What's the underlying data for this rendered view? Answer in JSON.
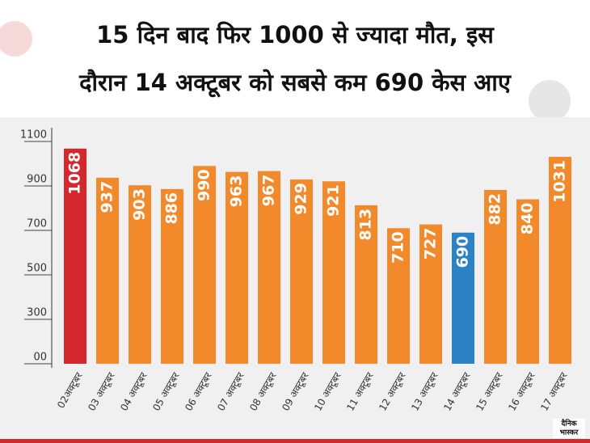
{
  "chart_data": {
    "type": "bar",
    "title": [
      "15 दिन बाद फिर 1000 से ज्यादा मौत, इस",
      "दौरान 14 अक्टूबर को सबसे कम 690 केस आए"
    ],
    "categories": [
      "02अक्टूबर",
      "03 अक्टूबर",
      "04 अक्टूबर",
      "05 अक्टूबर",
      "06 अक्टूबर",
      "07 अक्टूबर",
      "08 अक्टूबर",
      "09 अक्टूबर",
      "10 अक्टूबर",
      "11 अक्टूबर",
      "12 अक्टूबर",
      "13 अक्टूबर",
      "14 अक्टूबर",
      "15 अक्टूबर",
      "16 अक्टूबर",
      "17 अक्टूबर"
    ],
    "values": [
      1068,
      937,
      903,
      886,
      990,
      963,
      967,
      929,
      921,
      813,
      710,
      727,
      690,
      882,
      840,
      1031
    ],
    "colors": [
      "#d3282c",
      "#f28a2c",
      "#f28a2c",
      "#f28a2c",
      "#f28a2c",
      "#f28a2c",
      "#f28a2c",
      "#f28a2c",
      "#f28a2c",
      "#f28a2c",
      "#f28a2c",
      "#f28a2c",
      "#2b83c6",
      "#f28a2c",
      "#f28a2c",
      "#f28a2c"
    ],
    "ylim": [
      100,
      1175
    ],
    "yticks": [
      {
        "value": 100,
        "label": "00"
      },
      300,
      500,
      700,
      900,
      1100
    ],
    "logo": [
      "दैनिक",
      "भास्कर"
    ]
  }
}
